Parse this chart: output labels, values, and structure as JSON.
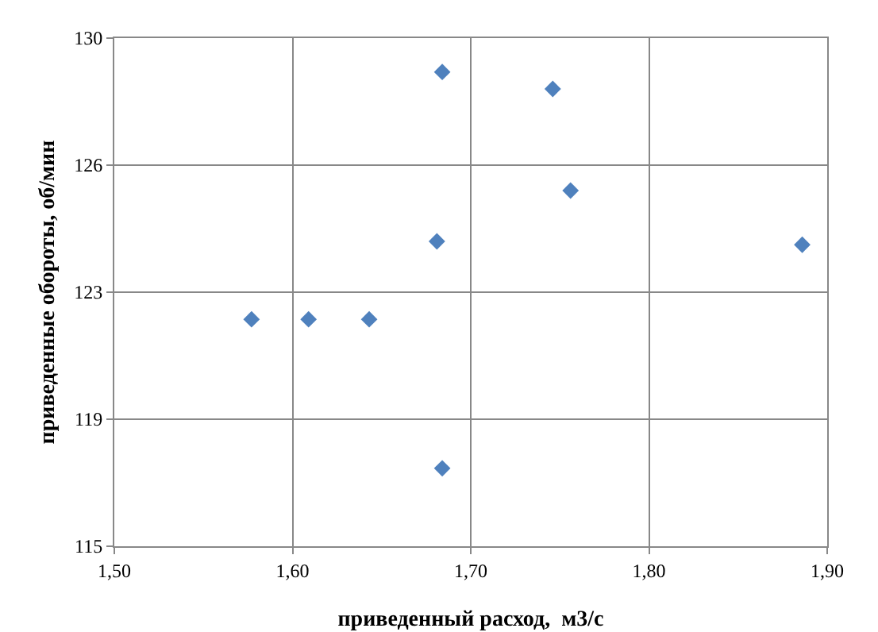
{
  "chart_data": {
    "type": "scatter",
    "xlabel": "приведенный расход,  м3/с",
    "ylabel": "приведенные обороты, об/мин",
    "x": [
      1.577,
      1.609,
      1.643,
      1.684,
      1.681,
      1.684,
      1.746,
      1.756,
      1.886
    ],
    "series": [
      {
        "color": "#4f81bd",
        "values": [
          121.7,
          121.7,
          121.7,
          129.0,
          124.0,
          117.3,
          128.5,
          125.5,
          123.9
        ]
      }
    ],
    "xlim": [
      1.5,
      1.9
    ],
    "xticks": [
      {
        "value": 1.5,
        "label": "1,50"
      },
      {
        "value": 1.6,
        "label": "1,60"
      },
      {
        "value": 1.7,
        "label": "1,70"
      },
      {
        "value": 1.8,
        "label": "1,80"
      },
      {
        "value": 1.9,
        "label": "1,90"
      }
    ],
    "ylim": [
      115,
      130
    ],
    "yticks": [
      115,
      {
        "value": 118.75,
        "label": "119"
      },
      {
        "value": 122.5,
        "label": "123"
      },
      {
        "value": 126.25,
        "label": "126"
      },
      130
    ],
    "grid": true,
    "marker": "diamond"
  }
}
